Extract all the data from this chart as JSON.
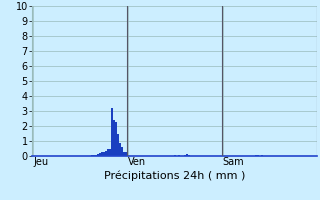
{
  "title": "Précipitations 24h ( mm )",
  "background_color": "#cceeff",
  "plot_bg_color": "#cceeff",
  "bar_color": "#1a3fc0",
  "grid_color": "#99bbbb",
  "vline_color": "#555566",
  "ylim": [
    0,
    10
  ],
  "yticks": [
    0,
    1,
    2,
    3,
    4,
    5,
    6,
    7,
    8,
    9,
    10
  ],
  "day_labels": [
    "Jeu",
    "Ven",
    "Sam"
  ],
  "num_bars": 144,
  "bars_per_day": 48,
  "bar_width": 1.0,
  "bar_values": [
    0,
    0,
    0,
    0,
    0,
    0,
    0,
    0,
    0,
    0,
    0,
    0,
    0,
    0,
    0,
    0,
    0,
    0,
    0,
    0,
    0,
    0,
    0,
    0,
    0,
    0,
    0,
    0,
    0,
    0,
    0.1,
    0.1,
    0.1,
    0.15,
    0.2,
    0.25,
    0.3,
    0.35,
    0.5,
    0.45,
    3.2,
    2.4,
    2.3,
    1.5,
    0.9,
    0.6,
    0.3,
    0.25,
    0,
    0,
    0,
    0,
    0,
    0,
    0,
    0,
    0,
    0,
    0,
    0,
    0,
    0,
    0,
    0,
    0,
    0,
    0,
    0,
    0,
    0,
    0,
    0,
    0.07,
    0,
    0.07,
    0,
    0,
    0.07,
    0.12,
    0.07,
    0,
    0,
    0,
    0,
    0,
    0,
    0,
    0,
    0,
    0,
    0,
    0,
    0,
    0,
    0,
    0,
    0,
    0,
    0,
    0,
    0,
    0,
    0,
    0,
    0,
    0,
    0,
    0,
    0,
    0,
    0,
    0,
    0,
    0.1,
    0.1,
    0,
    0.1,
    0,
    0,
    0,
    0,
    0,
    0,
    0,
    0,
    0,
    0,
    0,
    0,
    0,
    0,
    0,
    0,
    0,
    0,
    0,
    0,
    0,
    0,
    0,
    0,
    0,
    0,
    0
  ],
  "ylabel_fontsize": 7,
  "xlabel_fontsize": 8,
  "tick_fontsize": 7
}
